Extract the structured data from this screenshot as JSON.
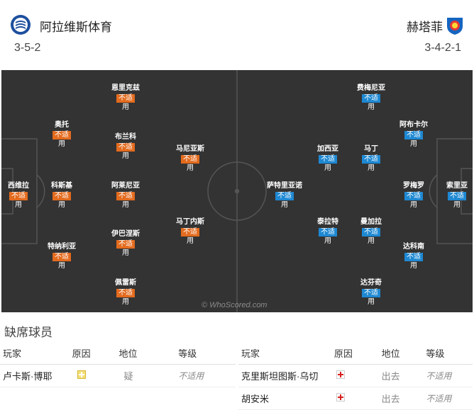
{
  "home": {
    "name": "阿拉维斯体育",
    "formation": "3-5-2",
    "badge_icon": "alaves-crest-icon",
    "color": "#e36b1e",
    "players": [
      {
        "name": "西维拉",
        "status": "不适",
        "status2": "用"
      },
      {
        "name": "奥托",
        "status": "不适",
        "status2": "用"
      },
      {
        "name": "科斯基",
        "status": "不适",
        "status2": "用"
      },
      {
        "name": "特纳利亚",
        "status": "不适",
        "status2": "用"
      },
      {
        "name": "恩里克兹",
        "status": "不适",
        "status2": "用"
      },
      {
        "name": "布兰科",
        "status": "不适",
        "status2": "用"
      },
      {
        "name": "阿莱尼亚",
        "status": "不适",
        "status2": "用"
      },
      {
        "name": "伊巴涅斯",
        "status": "不适",
        "status2": "用"
      },
      {
        "name": "佩雷斯",
        "status": "不适",
        "status2": "用"
      },
      {
        "name": "马尼亚斯",
        "status": "不适",
        "status2": "用"
      },
      {
        "name": "马丁内斯",
        "status": "不适",
        "status2": "用"
      }
    ]
  },
  "away": {
    "name": "赫塔菲",
    "formation": "3-4-2-1",
    "badge_icon": "getafe-crest-icon",
    "color": "#1e88d2",
    "players": [
      {
        "name": "索里亚",
        "status": "不适",
        "status2": "用"
      },
      {
        "name": "阿布卡尔",
        "status": "不适",
        "status2": "用"
      },
      {
        "name": "罗梅罗",
        "status": "不适",
        "status2": "用"
      },
      {
        "name": "达科南",
        "status": "不适",
        "status2": "用"
      },
      {
        "name": "费梅尼亚",
        "status": "不适",
        "status2": "用"
      },
      {
        "name": "马丁",
        "status": "不适",
        "status2": "用"
      },
      {
        "name": "曼加拉",
        "status": "不适",
        "status2": "用"
      },
      {
        "name": "达芬奇",
        "status": "不适",
        "status2": "用"
      },
      {
        "name": "加西亚",
        "status": "不适",
        "status2": "用"
      },
      {
        "name": "泰拉特",
        "status": "不适",
        "status2": "用"
      },
      {
        "name": "萨特里亚诺",
        "status": "不适",
        "status2": "用"
      }
    ]
  },
  "watermark": "© WhoScored.com",
  "absent": {
    "title": "缺席球员",
    "headers": [
      "玩家",
      "原因",
      "地位",
      "等级"
    ],
    "home_rows": [
      {
        "player": "卢卡斯·博耶",
        "reason_icon": "doubt-icon",
        "status": "疑",
        "rating": "不适用"
      }
    ],
    "away_rows": [
      {
        "player": "克里斯坦图斯·乌切",
        "reason_icon": "injury-icon",
        "status": "出去",
        "rating": "不适用"
      },
      {
        "player": "胡安米",
        "reason_icon": "injury-icon",
        "status": "出去",
        "rating": "不适用"
      }
    ]
  }
}
